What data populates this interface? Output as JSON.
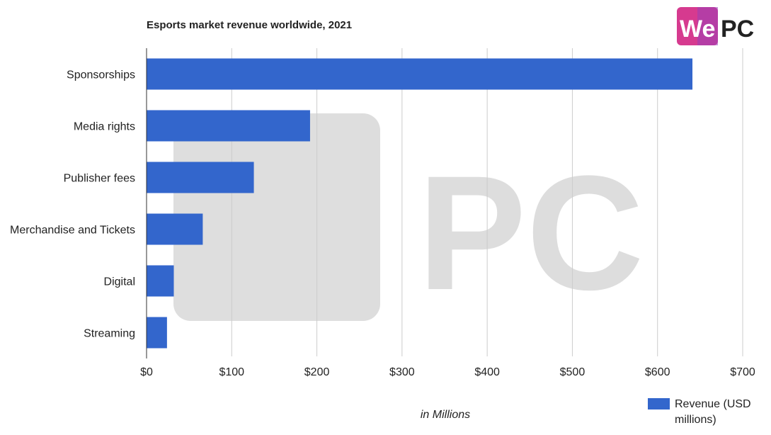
{
  "logo": {
    "text_we": "We",
    "text_pc": "PC",
    "accent_color": "#d63a8f",
    "accent_color_2": "#9b3fb8",
    "pc_color": "#222222"
  },
  "chart_data": {
    "type": "bar",
    "orientation": "horizontal",
    "title": "Esports market revenue worldwide, 2021",
    "xlabel": "in Millions",
    "ylabel": "",
    "categories": [
      "Sponsorships",
      "Media rights",
      "Publisher fees",
      "Merchandise and Tickets",
      "Digital",
      "Streaming"
    ],
    "series": [
      {
        "name": "Revenue (USD millions)",
        "legend_lines": [
          "Revenue (USD",
          "millions)"
        ],
        "values": [
          641,
          192,
          126,
          66,
          32,
          24
        ],
        "color": "#3366cc"
      }
    ],
    "xlim": [
      0,
      700
    ],
    "xticks": [
      0,
      100,
      200,
      300,
      400,
      500,
      600,
      700
    ],
    "xtick_labels": [
      "$0",
      "$100",
      "$200",
      "$300",
      "$400",
      "$500",
      "$600",
      "$700"
    ],
    "grid": true,
    "legend_position": "bottom-right",
    "watermark": "WePC"
  }
}
